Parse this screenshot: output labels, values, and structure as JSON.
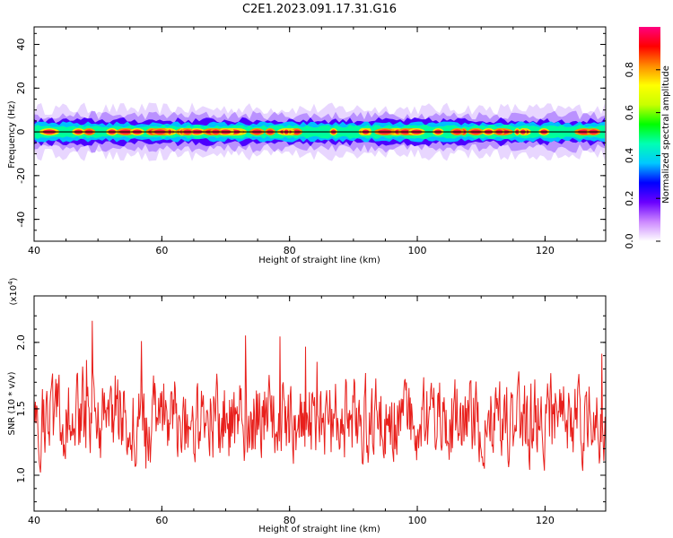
{
  "figure": {
    "title": "C2E1.2023.091.17.31.G16"
  },
  "chart_data": [
    {
      "type": "heatmap",
      "xlabel": "Height of straight line (km)",
      "ylabel": "Frequency (Hz)",
      "xlim": [
        40,
        129.5
      ],
      "ylim": [
        -50,
        48
      ],
      "xticks": [
        40,
        60,
        80,
        100,
        120
      ],
      "yticks": [
        -40,
        -20,
        0,
        20,
        40
      ],
      "colorbar": {
        "label": "Normalized spectral amplitude",
        "range": [
          0.0,
          1.0
        ],
        "ticks": [
          0.0,
          0.2,
          0.4,
          0.6,
          0.8
        ],
        "colormap": [
          "#ffffff",
          "#cc88ff",
          "#6a00ff",
          "#0000ff",
          "#00c8ff",
          "#00ffb4",
          "#00ff00",
          "#c8ff00",
          "#ffff00",
          "#ff8c00",
          "#ff0000",
          "#ff0080"
        ]
      },
      "band_center_hz": 0,
      "band_halfwidth_hz": 3,
      "grid": false
    },
    {
      "type": "line",
      "xlabel": "Height of straight line (km)",
      "ylabel": "SNR (10 * v/v)",
      "y_scale_label": "(x10",
      "y_scale_exp": "4",
      "y_scale_close": ")",
      "xlim": [
        40,
        129.5
      ],
      "ylim": [
        0.73,
        2.35
      ],
      "xticks": [
        40,
        60,
        80,
        100,
        120
      ],
      "yticks": [
        1.0,
        1.5,
        2.0
      ],
      "color": "#e8201c",
      "grid": false
    }
  ]
}
